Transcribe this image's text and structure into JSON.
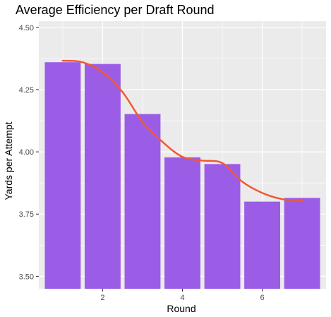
{
  "chart_data": {
    "type": "bar",
    "title": "Average Efficiency per Draft Round",
    "xlabel": "Round",
    "ylabel": "Yards per Attempt",
    "x": [
      1,
      2,
      3,
      4,
      5,
      6,
      7
    ],
    "values": [
      4.36,
      4.353,
      4.152,
      3.978,
      3.951,
      3.8,
      3.815
    ],
    "trend_line": {
      "type": "smooth",
      "x": [
        1,
        1.5,
        2,
        2.5,
        3,
        3.5,
        4,
        4.5,
        5,
        5.5,
        6,
        6.5,
        7
      ],
      "y": [
        4.366,
        4.36,
        4.32,
        4.24,
        4.12,
        4.04,
        3.98,
        3.965,
        3.955,
        3.88,
        3.835,
        3.81,
        3.805
      ]
    },
    "xlim": [
      0.4,
      7.6
    ],
    "ylim": [
      3.45,
      4.525
    ],
    "x_ticks": [
      2,
      4,
      6
    ],
    "y_ticks": [
      3.5,
      3.75,
      4.0,
      4.25,
      4.5
    ],
    "y_tick_labels": [
      "3.50",
      "3.75",
      "4.00",
      "4.25",
      "4.50"
    ],
    "grid": true,
    "legend": "none",
    "colors": {
      "bar": "#9b5de5",
      "line": "#f05a32",
      "panel": "#ebebeb",
      "grid": "#ffffff"
    }
  }
}
